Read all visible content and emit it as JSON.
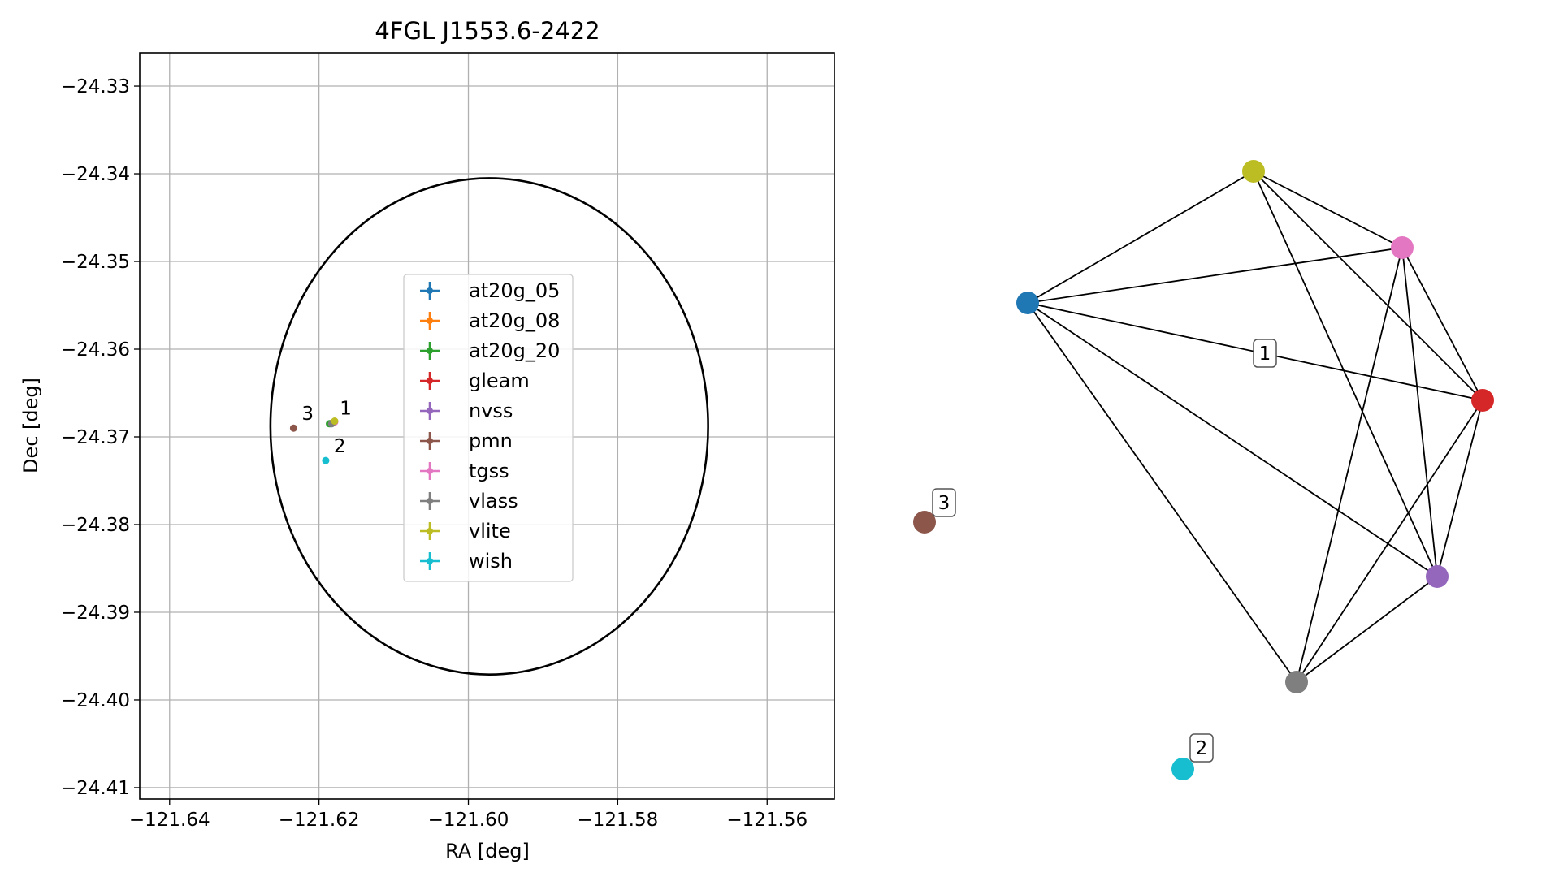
{
  "chart_data": [
    {
      "type": "scatter",
      "title": "4FGL J1553.6-2422",
      "xlabel": "RA [deg]",
      "ylabel": "Dec [deg]",
      "xlim": [
        -121.644,
        -121.551
      ],
      "ylim": [
        -24.4113,
        -24.3262
      ],
      "xticks": [
        -121.64,
        -121.62,
        -121.6,
        -121.58,
        -121.56
      ],
      "xtick_labels": [
        "−121.64",
        "−121.62",
        "−121.60",
        "−121.58",
        "−121.56"
      ],
      "yticks": [
        -24.33,
        -24.34,
        -24.35,
        -24.36,
        -24.37,
        -24.38,
        -24.39,
        -24.4,
        -24.41
      ],
      "ytick_labels": [
        "−24.33",
        "−24.34",
        "−24.35",
        "−24.36",
        "−24.37",
        "−24.38",
        "−24.39",
        "−24.40",
        "−24.41"
      ],
      "grid": true,
      "legend_position": "center",
      "ellipse": {
        "center": [
          -121.5972,
          -24.3688
        ],
        "semi_axis_ra": 0.0293,
        "semi_axis_dec": 0.0283
      },
      "series": [
        {
          "name": "at20g_05",
          "color": "#1f77b4",
          "points": [
            [
              -121.6184,
              -24.3685
            ]
          ]
        },
        {
          "name": "at20g_08",
          "color": "#ff7f0e",
          "points": [
            [
              -121.6182,
              -24.3684
            ]
          ]
        },
        {
          "name": "at20g_20",
          "color": "#2ca02c",
          "points": [
            [
              -121.6186,
              -24.3685
            ]
          ]
        },
        {
          "name": "gleam",
          "color": "#d62728",
          "points": [
            [
              -121.618,
              -24.3683
            ]
          ]
        },
        {
          "name": "nvss",
          "color": "#9467bd",
          "points": [
            [
              -121.6181,
              -24.3684
            ]
          ]
        },
        {
          "name": "pmn",
          "color": "#8c564b",
          "points": [
            [
              -121.6234,
              -24.369
            ]
          ]
        },
        {
          "name": "tgss",
          "color": "#e377c2",
          "points": [
            [
              -121.6179,
              -24.3683
            ]
          ]
        },
        {
          "name": "vlass",
          "color": "#7f7f7f",
          "points": [
            [
              -121.6183,
              -24.3685
            ]
          ]
        },
        {
          "name": "vlite",
          "color": "#bcbd22",
          "points": [
            [
              -121.6179,
              -24.3682
            ]
          ]
        },
        {
          "name": "wish",
          "color": "#17becf",
          "points": [
            [
              -121.6191,
              -24.3727
            ]
          ]
        }
      ],
      "annotations": [
        {
          "text": "1",
          "x": -121.6183,
          "y": -24.3684
        },
        {
          "text": "2",
          "x": -121.6191,
          "y": -24.3727
        },
        {
          "text": "3",
          "x": -121.6234,
          "y": -24.369
        }
      ]
    },
    {
      "type": "network",
      "nodes": [
        {
          "id": "at20g_05",
          "color": "#1f77b4"
        },
        {
          "id": "vlite",
          "color": "#bcbd22"
        },
        {
          "id": "tgss",
          "color": "#e377c2"
        },
        {
          "id": "gleam",
          "color": "#d62728"
        },
        {
          "id": "nvss",
          "color": "#9467bd"
        },
        {
          "id": "vlass",
          "color": "#7f7f7f"
        },
        {
          "id": "pmn",
          "color": "#8c564b"
        },
        {
          "id": "wish",
          "color": "#17becf"
        }
      ],
      "edges": [
        [
          "at20g_05",
          "vlite"
        ],
        [
          "at20g_05",
          "tgss"
        ],
        [
          "at20g_05",
          "gleam"
        ],
        [
          "at20g_05",
          "nvss"
        ],
        [
          "at20g_05",
          "vlass"
        ],
        [
          "vlite",
          "tgss"
        ],
        [
          "vlite",
          "gleam"
        ],
        [
          "vlite",
          "nvss"
        ],
        [
          "tgss",
          "gleam"
        ],
        [
          "tgss",
          "nvss"
        ],
        [
          "tgss",
          "vlass"
        ],
        [
          "gleam",
          "nvss"
        ],
        [
          "gleam",
          "vlass"
        ],
        [
          "nvss",
          "vlass"
        ]
      ],
      "group_labels": [
        {
          "text": "1",
          "near": "center"
        },
        {
          "text": "2",
          "near": "wish"
        },
        {
          "text": "3",
          "near": "pmn"
        }
      ]
    }
  ]
}
